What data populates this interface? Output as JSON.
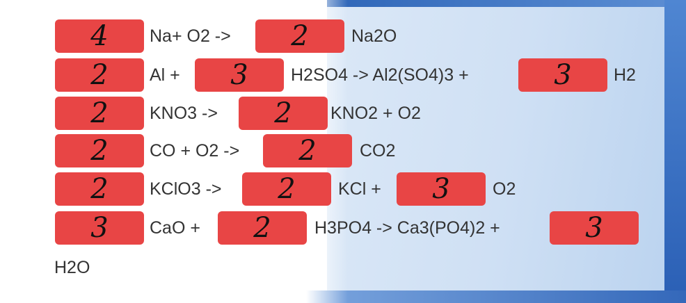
{
  "colors": {
    "box": "#e84545",
    "text": "#333333",
    "panel": "#cfe0f4"
  },
  "rows": [
    {
      "answers": [
        "4",
        "2"
      ],
      "texts": [
        "Na+ O2 ->",
        "Na2O"
      ]
    },
    {
      "answers": [
        "2",
        "3",
        "3"
      ],
      "texts": [
        "Al +",
        "H2SO4 -> Al2(SO4)3 +",
        "H2"
      ]
    },
    {
      "answers": [
        "2",
        "2"
      ],
      "texts": [
        "KNO3 ->",
        "KNO2 + O2"
      ]
    },
    {
      "answers": [
        "2",
        "2"
      ],
      "texts": [
        "CO + O2 ->",
        "CO2"
      ]
    },
    {
      "answers": [
        "2",
        "2",
        "3"
      ],
      "texts": [
        "KClO3 ->",
        "KCl +",
        "O2"
      ]
    },
    {
      "answers": [
        "3",
        "2",
        "3"
      ],
      "texts": [
        "CaO +",
        "H3PO4 -> Ca3(PO4)2 +"
      ]
    }
  ],
  "trailing": "H2O"
}
